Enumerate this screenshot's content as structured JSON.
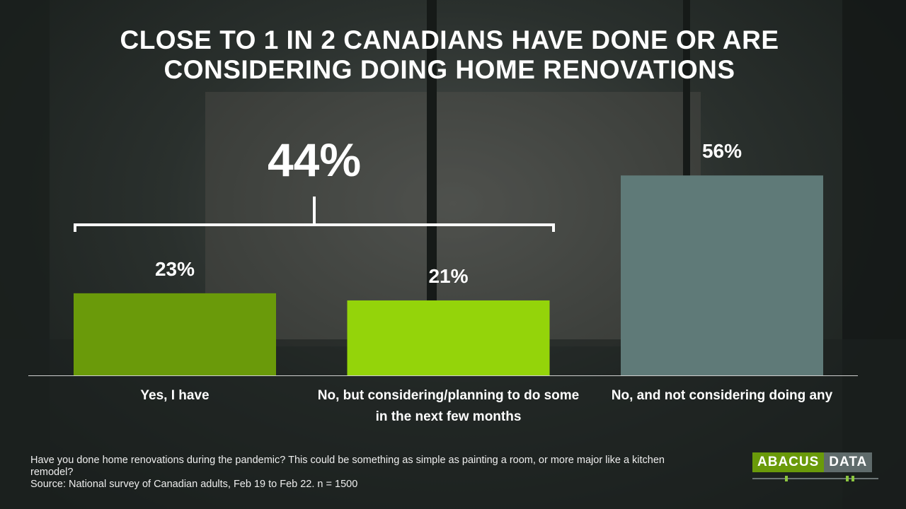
{
  "chart_data": {
    "type": "bar",
    "title": "CLOSE TO 1 IN 2 CANADIANS HAVE DONE OR ARE CONSIDERING DOING HOME RENOVATIONS",
    "categories": [
      "Yes, I have",
      "No, but considering/planning to do some in the next few months",
      "No, and not considering doing any"
    ],
    "values": [
      23,
      21,
      56
    ],
    "value_labels": [
      "23%",
      "21%",
      "56%"
    ],
    "colors": [
      "#6a9a0a",
      "#94d40a",
      "#5f7a78"
    ],
    "annotation": "44%",
    "question": "Have you done home renovations during the pandemic? This could be something as simple as painting a room, or more major like a kitchen remodel?",
    "source": "Source: National survey of Canadian adults, Feb 19 to Feb 22. n = 1500"
  },
  "logo": {
    "left": "ABACUS",
    "right": "DATA"
  }
}
